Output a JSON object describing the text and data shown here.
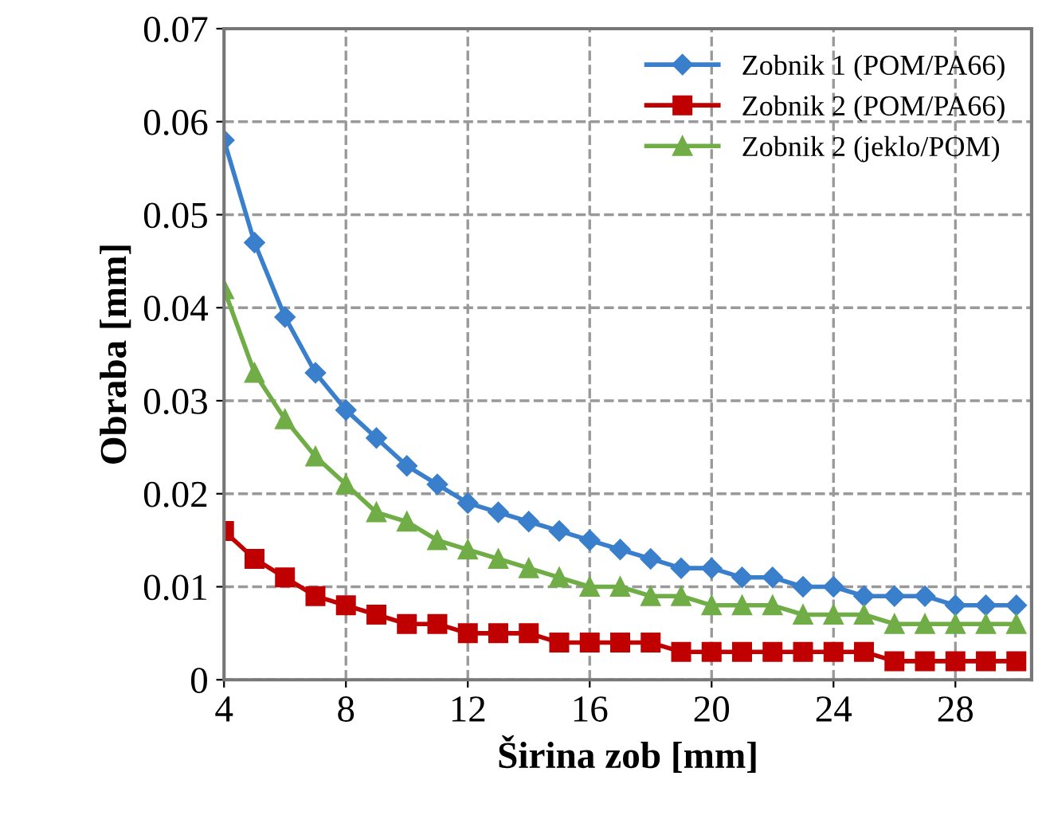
{
  "chart_data": {
    "type": "line",
    "xlabel": "Širina zob [mm]",
    "ylabel": "Obraba [mm]",
    "x": [
      4,
      5,
      6,
      7,
      8,
      9,
      10,
      11,
      12,
      13,
      14,
      15,
      16,
      17,
      18,
      19,
      20,
      21,
      22,
      23,
      24,
      25,
      26,
      27,
      28,
      29,
      30
    ],
    "series": [
      {
        "name": "Zobnik 1 (POM/PA66)",
        "color": "#3a7fcc",
        "marker": "diamond",
        "values": [
          0.058,
          0.047,
          0.039,
          0.033,
          0.029,
          0.026,
          0.023,
          0.021,
          0.019,
          0.018,
          0.017,
          0.016,
          0.015,
          0.014,
          0.013,
          0.012,
          0.012,
          0.011,
          0.011,
          0.01,
          0.01,
          0.009,
          0.009,
          0.009,
          0.008,
          0.008,
          0.008
        ]
      },
      {
        "name": "Zobnik 2 (POM/PA66)",
        "color": "#c00000",
        "marker": "square",
        "values": [
          0.016,
          0.013,
          0.011,
          0.009,
          0.008,
          0.007,
          0.006,
          0.006,
          0.005,
          0.005,
          0.005,
          0.004,
          0.004,
          0.004,
          0.004,
          0.003,
          0.003,
          0.003,
          0.003,
          0.003,
          0.003,
          0.003,
          0.002,
          0.002,
          0.002,
          0.002,
          0.002
        ]
      },
      {
        "name": "Zobnik 2 (jeklo/POM)",
        "color": "#70ad47",
        "marker": "triangle",
        "values": [
          0.042,
          0.033,
          0.028,
          0.024,
          0.021,
          0.018,
          0.017,
          0.015,
          0.014,
          0.013,
          0.012,
          0.011,
          0.01,
          0.01,
          0.009,
          0.009,
          0.008,
          0.008,
          0.008,
          0.007,
          0.007,
          0.007,
          0.006,
          0.006,
          0.006,
          0.006,
          0.006
        ]
      }
    ],
    "xlim": [
      4,
      30.5
    ],
    "xticks": [
      4,
      8,
      12,
      16,
      20,
      24,
      28
    ],
    "ylim": [
      0,
      0.07
    ],
    "yticks": [
      {
        "value": 0,
        "label": "0"
      },
      {
        "value": 0.01,
        "label": "0.01"
      },
      {
        "value": 0.02,
        "label": "0.02"
      },
      {
        "value": 0.03,
        "label": "0.03"
      },
      {
        "value": 0.04,
        "label": "0.04"
      },
      {
        "value": 0.05,
        "label": "0.05"
      },
      {
        "value": 0.06,
        "label": "0.06"
      },
      {
        "value": 0.07,
        "label": "0.07"
      }
    ],
    "grid": true,
    "legend": "top right",
    "line_style": "solid"
  }
}
